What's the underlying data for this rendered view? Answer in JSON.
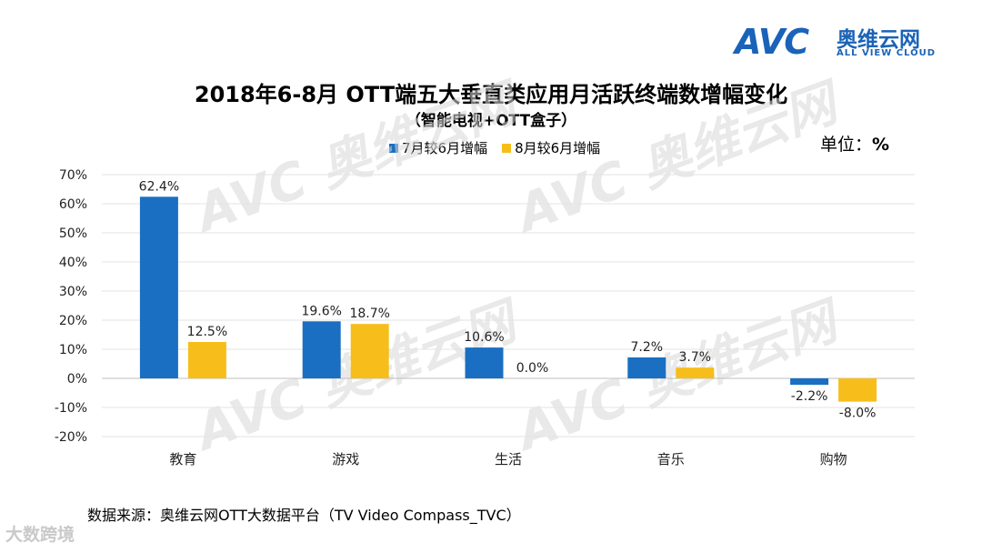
{
  "brand": {
    "logo_text": "AVC",
    "logo_cn": "奥维云网",
    "logo_en": "ALL VIEW CLOUD",
    "color": "#1a63b8"
  },
  "title": "2018年6-8月 OTT端五大垂直类应用月活跃终端数增幅变化",
  "subtitle": "（智能电视+OTT盒子）",
  "unit_label": "单位：",
  "unit_value": "%",
  "source": "数据来源：奥维云网OTT大数据平台（TV Video Compass_TVC）",
  "footer_mark": "大数跨境",
  "chart_data": {
    "type": "bar",
    "categories": [
      "教育",
      "游戏",
      "生活",
      "音乐",
      "购物"
    ],
    "series": [
      {
        "name": "7月较6月增幅",
        "color": "#1a6fc2",
        "values": [
          62.4,
          19.6,
          10.6,
          7.2,
          -2.2
        ]
      },
      {
        "name": "8月较6月增幅",
        "color": "#f7be1b",
        "values": [
          12.5,
          18.7,
          0.0,
          3.7,
          -8.0
        ]
      }
    ],
    "data_labels": [
      [
        "62.4%",
        "19.6%",
        "10.6%",
        "7.2%",
        "-2.2%"
      ],
      [
        "12.5%",
        "18.7%",
        "0.0%",
        "3.7%",
        "-8.0%"
      ]
    ],
    "y_ticks": [
      70,
      60,
      50,
      40,
      30,
      20,
      10,
      0,
      -10,
      -20
    ],
    "y_tick_labels": [
      "70%",
      "60%",
      "50%",
      "40%",
      "30%",
      "20%",
      "10%",
      "0%",
      "-10%",
      "-20%"
    ],
    "ylim": [
      -20,
      70
    ],
    "grid": true,
    "legend_position": "top"
  }
}
